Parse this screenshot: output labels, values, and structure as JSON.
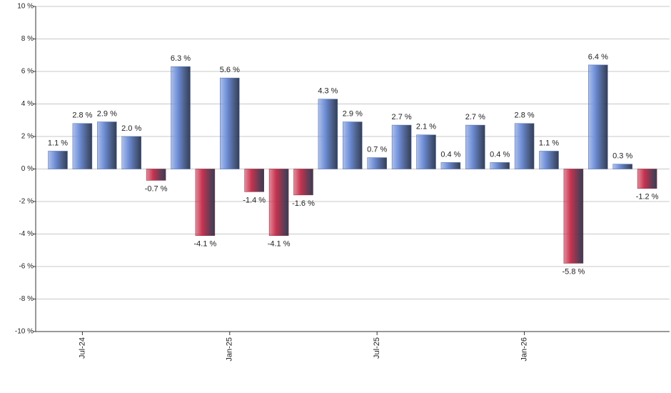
{
  "chart_data": {
    "type": "bar",
    "categories": [
      null,
      "Jul-24",
      null,
      null,
      null,
      null,
      null,
      "Jan-25",
      null,
      null,
      null,
      null,
      null,
      "Jul-25",
      null,
      null,
      null,
      null,
      null,
      "Jan-26",
      null,
      null,
      null,
      null,
      null
    ],
    "values": [
      1.1,
      2.8,
      2.9,
      2.0,
      -0.7,
      6.3,
      -4.1,
      5.6,
      -1.4,
      -4.1,
      -1.6,
      4.3,
      2.9,
      0.7,
      2.7,
      2.1,
      0.4,
      2.7,
      0.4,
      2.8,
      1.1,
      -5.8,
      6.4,
      0.3,
      -1.2
    ],
    "value_labels": [
      "1.1 %",
      "2.8 %",
      "2.9 %",
      "2.0 %",
      "-0.7 %",
      "6.3 %",
      "-4.1 %",
      "5.6 %",
      "-1.4 %",
      "-4.1 %",
      "-1.6 %",
      "4.3 %",
      "2.9 %",
      "0.7 %",
      "2.7 %",
      "2.1 %",
      "0.4 %",
      "2.7 %",
      "0.4 %",
      "2.8 %",
      "1.1 %",
      "-5.8 %",
      "6.4 %",
      "0.3 %",
      "-1.2 %"
    ],
    "positive_color": "#6f8fd8",
    "negative_color": "#c8334f",
    "ylim": [
      -10,
      10
    ],
    "yticks": [
      {
        "value": -10,
        "label": "-10 %"
      },
      {
        "value": -8,
        "label": "-8 %"
      },
      {
        "value": -6,
        "label": "-6 %"
      },
      {
        "value": -4,
        "label": "-4 %"
      },
      {
        "value": -2,
        "label": "-2 %"
      },
      {
        "value": 0,
        "label": "0 %"
      },
      {
        "value": 2,
        "label": "2 %"
      },
      {
        "value": 4,
        "label": "4 %"
      },
      {
        "value": 6,
        "label": "6 %"
      },
      {
        "value": 8,
        "label": "8 %"
      },
      {
        "value": 10,
        "label": "10 %"
      }
    ],
    "grid": true
  }
}
